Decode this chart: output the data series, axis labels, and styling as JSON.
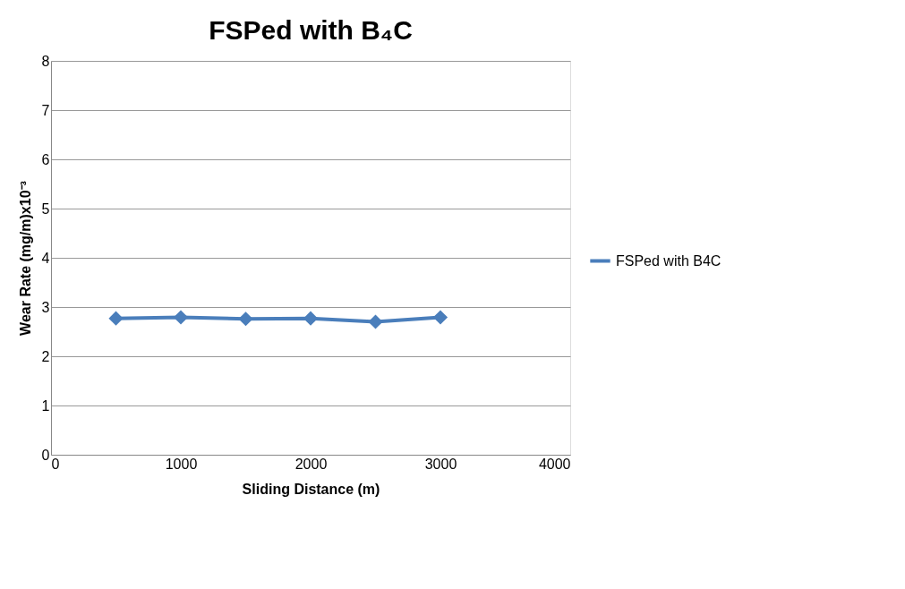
{
  "chart_data": {
    "type": "line",
    "title": "FSPed with B₄C",
    "xlabel": "Sliding Distance (m)",
    "ylabel": "Wear Rate (mg/m)x10⁻³",
    "x": [
      500,
      1000,
      1500,
      2000,
      2500,
      3000
    ],
    "series": [
      {
        "name": "FSPed with B4C",
        "color": "#4a7ebb",
        "values": [
          2.77,
          2.79,
          2.76,
          2.77,
          2.7,
          2.79
        ]
      }
    ],
    "xlim": [
      0,
      4000
    ],
    "xticks": [
      0,
      1000,
      2000,
      3000,
      4000
    ],
    "ylim": [
      0,
      8
    ],
    "yticks": [
      0,
      1,
      2,
      3,
      4,
      5,
      6,
      7,
      8
    ],
    "grid": "y",
    "legend": "right",
    "marker": "diamond",
    "line_style": "solid"
  }
}
